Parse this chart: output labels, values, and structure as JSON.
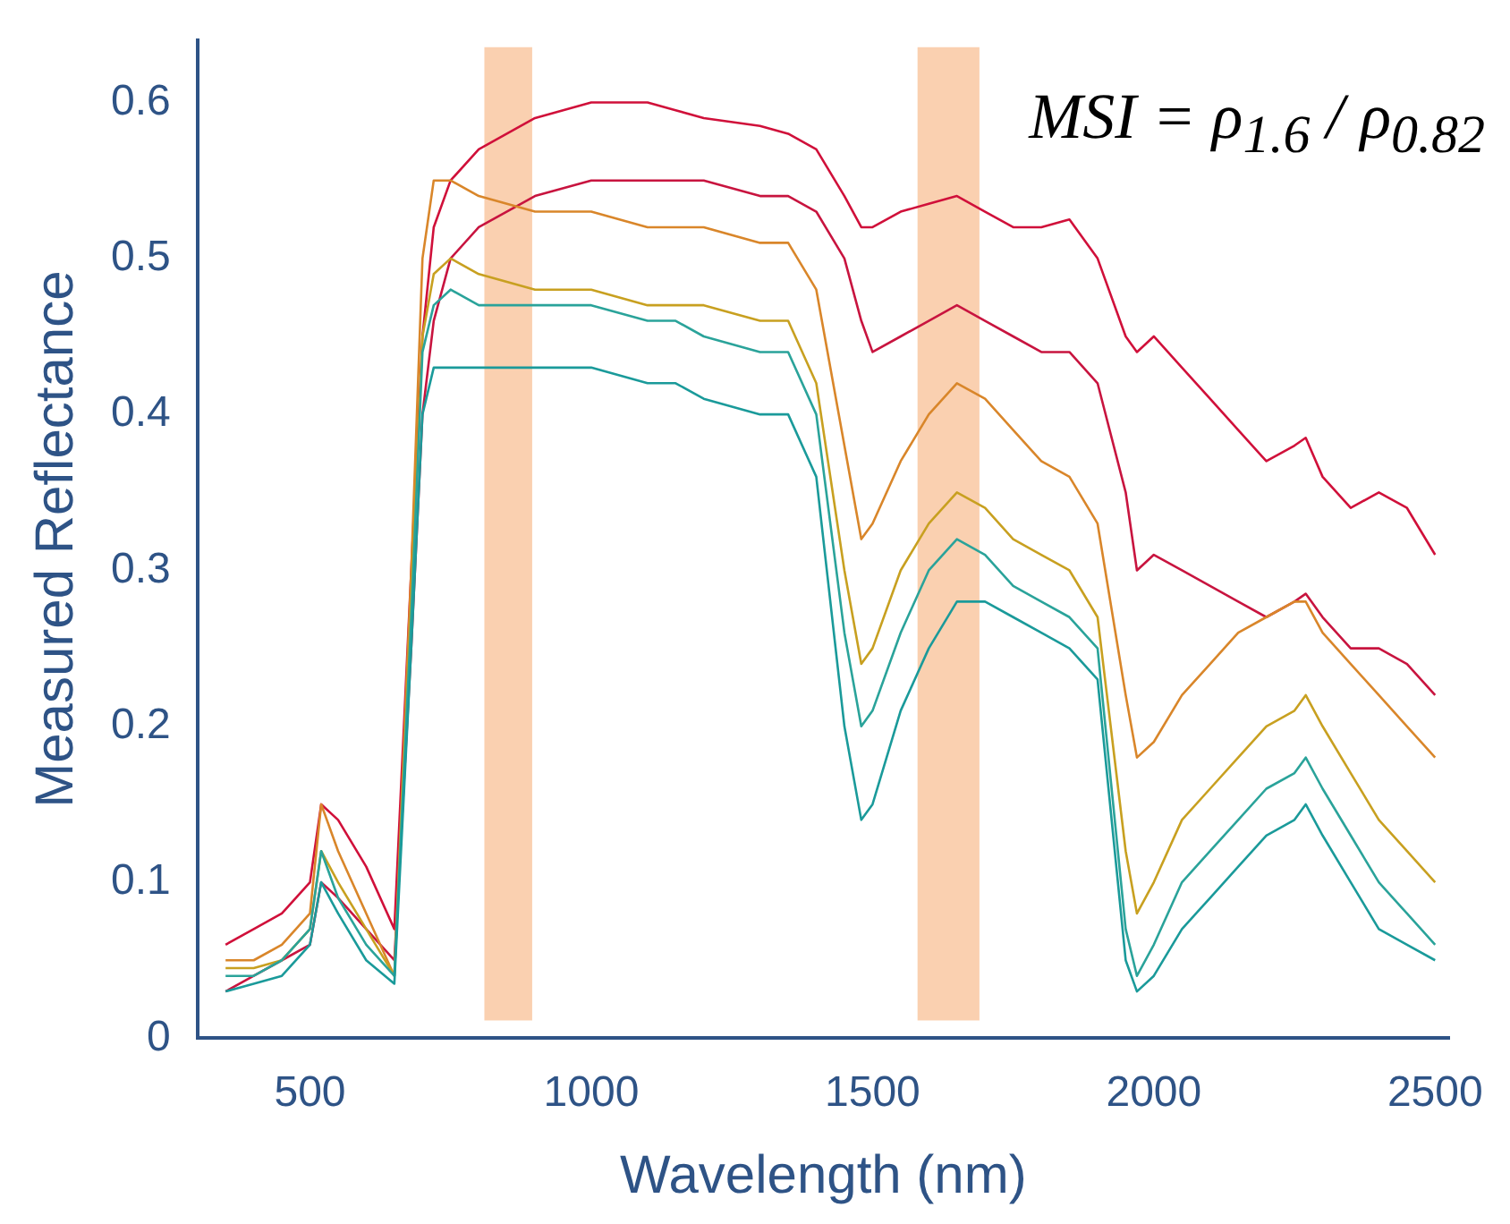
{
  "chart_data": {
    "type": "line",
    "xlabel": "Wavelength (nm)",
    "ylabel": "Measured Reflectance",
    "annotations": [
      "MSI = ρ$_{1.6}$ / ρ$_{0.82}$"
    ],
    "xlim": [
      300,
      2525
    ],
    "xticks": [
      500,
      1000,
      1500,
      2000,
      2500
    ],
    "ylim": [
      0,
      0.64
    ],
    "yticks": [
      0,
      0.1,
      0.2,
      0.3,
      0.4,
      0.5,
      0.6
    ],
    "grid": false,
    "legend": false,
    "marker": "none",
    "line_style": "solid",
    "bands": [
      {
        "axis": "x",
        "from": 810,
        "to": 895,
        "color": "#f9cba7"
      },
      {
        "axis": "x",
        "from": 1580,
        "to": 1690,
        "color": "#f9cba7"
      }
    ],
    "x": [
      350,
      400,
      450,
      500,
      520,
      550,
      600,
      650,
      680,
      700,
      720,
      750,
      800,
      900,
      1000,
      1100,
      1150,
      1200,
      1300,
      1350,
      1400,
      1450,
      1480,
      1500,
      1550,
      1600,
      1650,
      1700,
      1750,
      1800,
      1850,
      1900,
      1950,
      1970,
      2000,
      2050,
      2100,
      2150,
      2200,
      2250,
      2270,
      2300,
      2350,
      2400,
      2450,
      2500
    ],
    "series": [
      {
        "color": "#1a9a9a",
        "values": [
          0.03,
          0.035,
          0.04,
          0.06,
          0.1,
          0.08,
          0.05,
          0.035,
          0.25,
          0.4,
          0.43,
          0.43,
          0.43,
          0.43,
          0.43,
          0.42,
          0.42,
          0.41,
          0.4,
          0.4,
          0.36,
          0.2,
          0.14,
          0.15,
          0.21,
          0.25,
          0.28,
          0.28,
          0.27,
          0.26,
          0.25,
          0.23,
          0.05,
          0.03,
          0.04,
          0.07,
          0.09,
          0.11,
          0.13,
          0.14,
          0.15,
          0.13,
          0.1,
          0.07,
          0.06,
          0.05
        ]
      },
      {
        "color": "#2aa39a",
        "values": [
          0.04,
          0.04,
          0.05,
          0.07,
          0.12,
          0.09,
          0.06,
          0.04,
          0.27,
          0.44,
          0.47,
          0.48,
          0.47,
          0.47,
          0.47,
          0.46,
          0.46,
          0.45,
          0.44,
          0.44,
          0.4,
          0.26,
          0.2,
          0.21,
          0.26,
          0.3,
          0.32,
          0.31,
          0.29,
          0.28,
          0.27,
          0.25,
          0.07,
          0.04,
          0.06,
          0.1,
          0.12,
          0.14,
          0.16,
          0.17,
          0.18,
          0.16,
          0.13,
          0.1,
          0.08,
          0.06
        ]
      },
      {
        "color": "#c8a020",
        "values": [
          0.045,
          0.045,
          0.05,
          0.07,
          0.12,
          0.1,
          0.07,
          0.04,
          0.28,
          0.45,
          0.49,
          0.5,
          0.49,
          0.48,
          0.48,
          0.47,
          0.47,
          0.47,
          0.46,
          0.46,
          0.42,
          0.3,
          0.24,
          0.25,
          0.3,
          0.33,
          0.35,
          0.34,
          0.32,
          0.31,
          0.3,
          0.27,
          0.12,
          0.08,
          0.1,
          0.14,
          0.16,
          0.18,
          0.2,
          0.21,
          0.22,
          0.2,
          0.17,
          0.14,
          0.12,
          0.1
        ]
      },
      {
        "color": "#d9862a",
        "values": [
          0.05,
          0.05,
          0.06,
          0.08,
          0.15,
          0.12,
          0.08,
          0.04,
          0.3,
          0.5,
          0.55,
          0.55,
          0.54,
          0.53,
          0.53,
          0.52,
          0.52,
          0.52,
          0.51,
          0.51,
          0.48,
          0.38,
          0.32,
          0.33,
          0.37,
          0.4,
          0.42,
          0.41,
          0.39,
          0.37,
          0.36,
          0.33,
          0.22,
          0.18,
          0.19,
          0.22,
          0.24,
          0.26,
          0.27,
          0.28,
          0.28,
          0.26,
          0.24,
          0.22,
          0.2,
          0.18
        ]
      },
      {
        "color": "#c8143f",
        "values": [
          0.03,
          0.04,
          0.05,
          0.06,
          0.1,
          0.09,
          0.07,
          0.05,
          0.25,
          0.4,
          0.46,
          0.5,
          0.52,
          0.54,
          0.55,
          0.55,
          0.55,
          0.55,
          0.54,
          0.54,
          0.53,
          0.5,
          0.46,
          0.44,
          0.45,
          0.46,
          0.47,
          0.46,
          0.45,
          0.44,
          0.44,
          0.42,
          0.35,
          0.3,
          0.31,
          0.3,
          0.29,
          0.28,
          0.27,
          0.28,
          0.285,
          0.27,
          0.25,
          0.25,
          0.24,
          0.22
        ]
      },
      {
        "color": "#d0103a",
        "values": [
          0.06,
          0.07,
          0.08,
          0.1,
          0.15,
          0.14,
          0.11,
          0.07,
          0.3,
          0.45,
          0.52,
          0.55,
          0.57,
          0.59,
          0.6,
          0.6,
          0.595,
          0.59,
          0.585,
          0.58,
          0.57,
          0.54,
          0.52,
          0.52,
          0.53,
          0.535,
          0.54,
          0.53,
          0.52,
          0.52,
          0.525,
          0.5,
          0.45,
          0.44,
          0.45,
          0.43,
          0.41,
          0.39,
          0.37,
          0.38,
          0.385,
          0.36,
          0.34,
          0.35,
          0.34,
          0.31
        ]
      }
    ]
  }
}
